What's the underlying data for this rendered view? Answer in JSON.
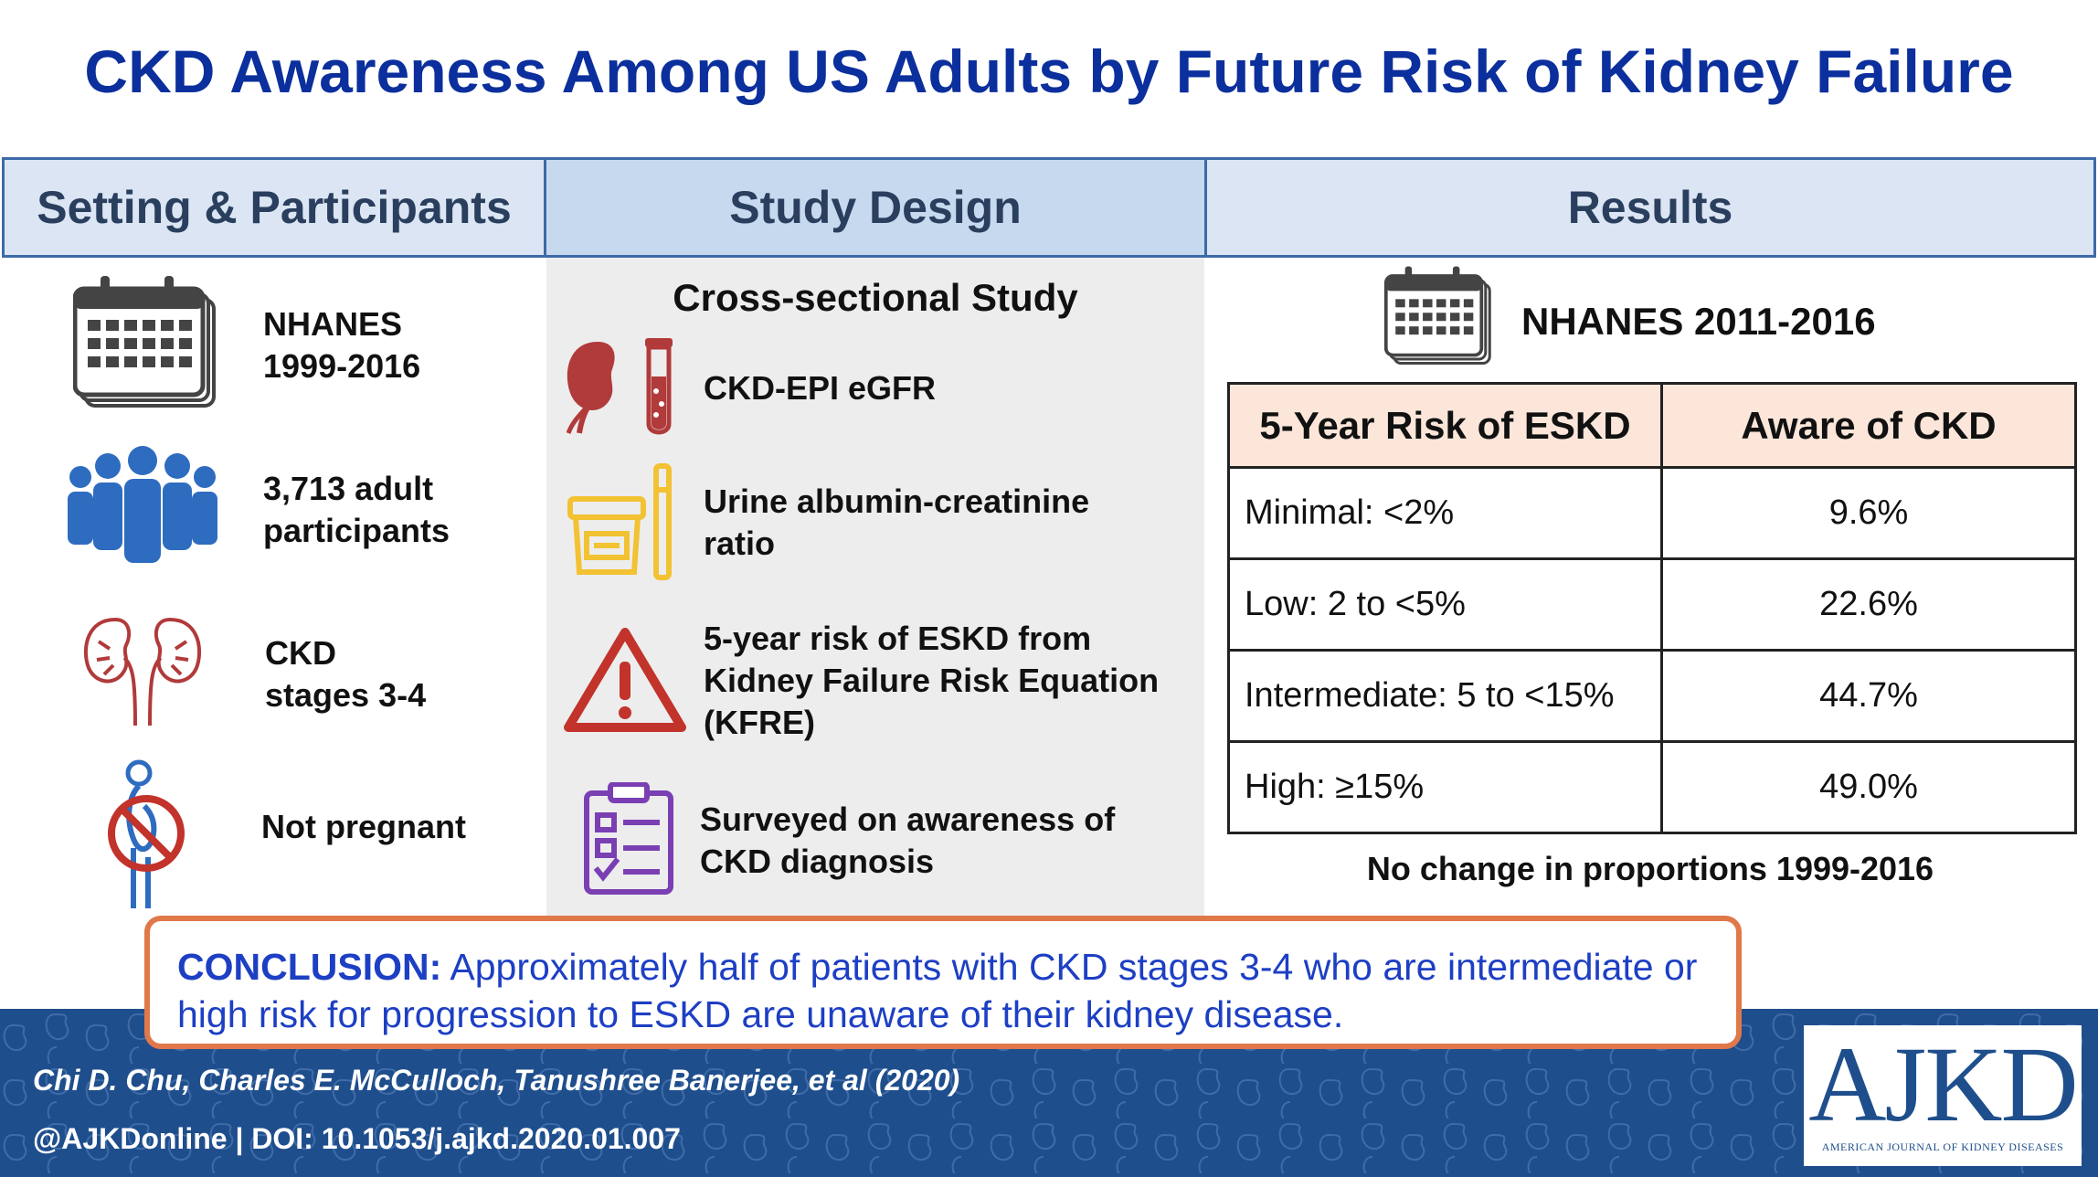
{
  "title": "CKD Awareness Among US Adults by Future Risk of Kidney Failure",
  "headers": {
    "setting": "Setting & Participants",
    "design": "Study Design",
    "results": "Results"
  },
  "setting": {
    "items": [
      {
        "icon": "calendar-icon",
        "line1": "NHANES",
        "line2": "1999-2016"
      },
      {
        "icon": "people-icon",
        "line1": "3,713 adult",
        "line2": "participants"
      },
      {
        "icon": "kidneys-icon",
        "line1": "CKD",
        "line2": "stages 3-4"
      },
      {
        "icon": "not-pregnant-icon",
        "line1": "Not pregnant",
        "line2": ""
      }
    ]
  },
  "design": {
    "title": "Cross-sectional Study",
    "items": [
      {
        "icon": "kidney-test-tube-icon",
        "line1": "CKD-EPI eGFR",
        "line2": "",
        "line3": ""
      },
      {
        "icon": "urine-cup-icon",
        "line1": "Urine albumin-creatinine",
        "line2": "ratio",
        "line3": ""
      },
      {
        "icon": "warning-icon",
        "line1": "5-year risk of ESKD from",
        "line2": "Kidney Failure Risk Equation",
        "line3": "(KFRE)"
      },
      {
        "icon": "clipboard-checklist-icon",
        "line1": "Surveyed on awareness of",
        "line2": "CKD diagnosis",
        "line3": ""
      }
    ]
  },
  "results": {
    "heading": "NHANES 2011-2016",
    "table": {
      "columns": [
        "5-Year Risk of ESKD",
        "Aware of CKD"
      ],
      "rows": [
        [
          "Minimal: <2%",
          "9.6%"
        ],
        [
          "Low: 2 to <5%",
          "22.6%"
        ],
        [
          "Intermediate: 5 to <15%",
          "44.7%"
        ],
        [
          "High: ≥15%",
          "49.0%"
        ]
      ]
    },
    "note": "No change in proportions 1999-2016"
  },
  "conclusion": {
    "label": "CONCLUSION:",
    "text": "Approximately half of patients with CKD stages 3-4 who are intermediate or high risk for progression to ESKD are unaware of their kidney disease."
  },
  "footer": {
    "authors": "Chi D. Chu, Charles E. McCulloch, Tanushree Banerjee, et al  (2020)",
    "doi": "@AJKDonline | DOI: 10.1053/j.ajkd.2020.01.007"
  },
  "logo": {
    "big": "AJKD",
    "small": "AMERICAN JOURNAL OF KIDNEY DISEASES"
  },
  "colors": {
    "title": "#0b2f9c",
    "header_border": "#3d6aa8",
    "footer": "#1f4e8c",
    "conclusion_border": "#e0784a",
    "conclusion_text": "#1d3fc4",
    "table_header": "#fbe6d9"
  }
}
